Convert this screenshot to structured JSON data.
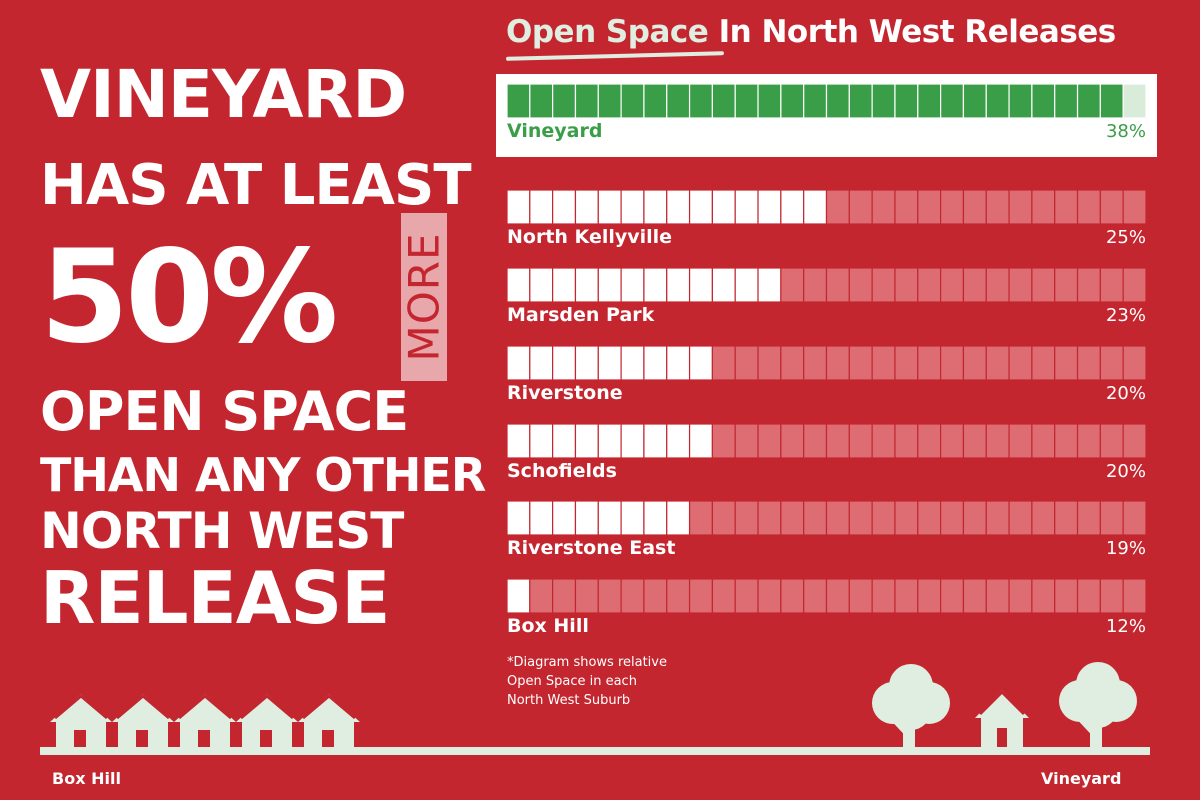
{
  "headline": {
    "line1": "VINEYARD",
    "line2": "HAS AT LEAST",
    "line3": "50%",
    "highlight": "MORE",
    "line4": "OPEN SPACE",
    "line5": "THAN ANY OTHER",
    "line6": "NORTH WEST",
    "line7": "RELEASE"
  },
  "chart_title": {
    "highlight": "Open Space",
    "rest": " In North West Releases"
  },
  "footnote": [
    "*Diagram shows relative",
    "Open Space in each",
    "North West Suburb"
  ],
  "ground": {
    "left_label": "Box Hill",
    "right_label": "Vineyard"
  },
  "colors": {
    "background": "#c4262f",
    "vineyard_fill": "#3a9e48",
    "vineyard_empty": "#d8ecd9",
    "filled": "#ffffff",
    "empty": "#dd6d72",
    "pale_green": "#dfeee0"
  },
  "chart_data": {
    "type": "bar",
    "title": "Open Space In North West Releases",
    "categories": [
      "Vineyard",
      "North Kellyville",
      "Marsden Park",
      "Riverstone",
      "Schofields",
      "Riverstone East",
      "Box Hill"
    ],
    "values": [
      38,
      25,
      23,
      20,
      20,
      19,
      12
    ],
    "value_labels": [
      "38%",
      "25%",
      "23%",
      "20%",
      "20%",
      "19%",
      "12%"
    ],
    "filled_blocks": [
      27,
      14,
      12,
      9,
      9,
      8,
      1
    ],
    "total_blocks": 28,
    "orientation": "horizontal",
    "grid": false,
    "legend": "none"
  }
}
